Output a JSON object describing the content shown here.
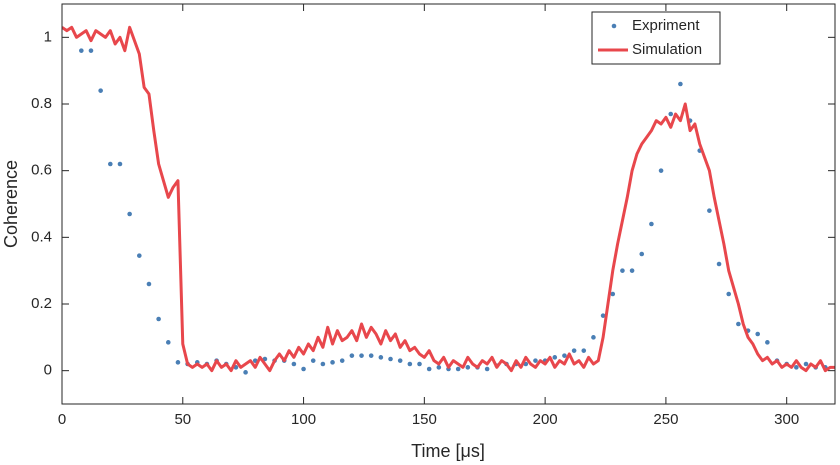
{
  "chart_data": {
    "type": "line",
    "xlabel": "Time [μs]",
    "ylabel": "Coherence",
    "xlim": [
      0,
      320
    ],
    "ylim": [
      -0.1,
      1.1
    ],
    "xticks": [
      0,
      50,
      100,
      150,
      200,
      250,
      300
    ],
    "yticks": [
      0,
      0.2,
      0.4,
      0.6,
      0.8,
      1
    ],
    "legend": "upper right",
    "series": [
      {
        "name": "Expriment",
        "color": "#4a7fb5",
        "mode": "markers",
        "x": [
          8,
          12,
          16,
          20,
          24,
          28,
          32,
          36,
          40,
          44,
          48,
          52,
          56,
          60,
          64,
          68,
          72,
          76,
          80,
          84,
          88,
          92,
          96,
          100,
          104,
          108,
          112,
          116,
          120,
          124,
          128,
          132,
          136,
          140,
          144,
          148,
          152,
          156,
          160,
          164,
          168,
          172,
          176,
          180,
          184,
          188,
          192,
          196,
          200,
          204,
          208,
          212,
          216,
          220,
          224,
          228,
          232,
          236,
          240,
          244,
          248,
          252,
          256,
          260,
          264,
          268,
          272,
          276,
          280,
          284,
          288,
          292,
          296,
          300,
          304,
          308,
          312,
          316
        ],
        "values": [
          0.96,
          0.96,
          0.84,
          0.62,
          0.62,
          0.47,
          0.345,
          0.26,
          0.155,
          0.085,
          0.025,
          0.02,
          0.025,
          0.02,
          0.03,
          0.02,
          0.01,
          -0.005,
          0.03,
          0.035,
          0.03,
          0.03,
          0.02,
          0.005,
          0.03,
          0.02,
          0.025,
          0.03,
          0.045,
          0.045,
          0.045,
          0.04,
          0.035,
          0.03,
          0.02,
          0.02,
          0.005,
          0.01,
          0.005,
          0.005,
          0.01,
          0.01,
          0.005,
          0.015,
          0.02,
          0.02,
          0.02,
          0.03,
          0.03,
          0.04,
          0.045,
          0.06,
          0.06,
          0.1,
          0.165,
          0.23,
          0.3,
          0.3,
          0.35,
          0.44,
          0.6,
          0.77,
          0.86,
          0.75,
          0.66,
          0.48,
          0.32,
          0.23,
          0.14,
          0.12,
          0.11,
          0.085,
          0.03,
          0.02,
          0.01,
          0.02,
          0.01,
          0.01
        ]
      },
      {
        "name": "Simulation",
        "color": "#e8474c",
        "mode": "line",
        "x": [
          0,
          2,
          4,
          6,
          8,
          10,
          12,
          14,
          16,
          18,
          20,
          22,
          24,
          26,
          28,
          30,
          32,
          34,
          36,
          38,
          40,
          42,
          44,
          46,
          48,
          50,
          52,
          54,
          56,
          58,
          60,
          62,
          64,
          66,
          68,
          70,
          72,
          74,
          76,
          78,
          80,
          82,
          84,
          86,
          88,
          90,
          92,
          94,
          96,
          98,
          100,
          102,
          104,
          106,
          108,
          110,
          112,
          114,
          116,
          118,
          120,
          122,
          124,
          126,
          128,
          130,
          132,
          134,
          136,
          138,
          140,
          142,
          144,
          146,
          148,
          150,
          152,
          154,
          156,
          158,
          160,
          162,
          164,
          166,
          168,
          170,
          172,
          174,
          176,
          178,
          180,
          182,
          184,
          186,
          188,
          190,
          192,
          194,
          196,
          198,
          200,
          202,
          204,
          206,
          208,
          210,
          212,
          214,
          216,
          218,
          220,
          222,
          224,
          226,
          228,
          230,
          232,
          234,
          236,
          238,
          240,
          242,
          244,
          246,
          248,
          250,
          252,
          254,
          256,
          258,
          260,
          262,
          264,
          266,
          268,
          270,
          272,
          274,
          276,
          278,
          280,
          282,
          284,
          286,
          288,
          290,
          292,
          294,
          296,
          298,
          300,
          302,
          304,
          306,
          308,
          310,
          312,
          314,
          316,
          318,
          320
        ],
        "values": [
          1.03,
          1.02,
          1.03,
          1.0,
          1.01,
          1.02,
          0.99,
          1.02,
          1.01,
          1.0,
          1.02,
          0.98,
          1.0,
          0.96,
          1.03,
          0.99,
          0.95,
          0.85,
          0.83,
          0.72,
          0.62,
          0.57,
          0.52,
          0.55,
          0.57,
          0.08,
          0.02,
          0.01,
          0.02,
          0.01,
          0.02,
          0.0,
          0.03,
          0.01,
          0.02,
          0.0,
          0.03,
          0.01,
          0.02,
          0.03,
          0.01,
          0.04,
          0.02,
          0.0,
          0.03,
          0.05,
          0.03,
          0.06,
          0.04,
          0.07,
          0.05,
          0.08,
          0.06,
          0.1,
          0.07,
          0.13,
          0.08,
          0.12,
          0.09,
          0.1,
          0.12,
          0.09,
          0.14,
          0.1,
          0.13,
          0.11,
          0.08,
          0.12,
          0.09,
          0.11,
          0.07,
          0.09,
          0.06,
          0.07,
          0.05,
          0.04,
          0.06,
          0.03,
          0.02,
          0.04,
          0.01,
          0.03,
          0.02,
          0.01,
          0.04,
          0.02,
          0.01,
          0.03,
          0.02,
          0.04,
          0.01,
          0.03,
          0.02,
          0.0,
          0.03,
          0.01,
          0.04,
          0.02,
          0.01,
          0.03,
          0.02,
          0.04,
          0.01,
          0.03,
          0.02,
          0.05,
          0.02,
          0.03,
          0.01,
          0.04,
          0.02,
          0.03,
          0.1,
          0.2,
          0.3,
          0.38,
          0.45,
          0.52,
          0.6,
          0.65,
          0.68,
          0.7,
          0.72,
          0.75,
          0.74,
          0.76,
          0.73,
          0.77,
          0.75,
          0.8,
          0.72,
          0.74,
          0.68,
          0.64,
          0.6,
          0.52,
          0.45,
          0.38,
          0.3,
          0.25,
          0.2,
          0.14,
          0.1,
          0.08,
          0.05,
          0.03,
          0.04,
          0.02,
          0.03,
          0.01,
          0.02,
          0.01,
          0.03,
          0.01,
          0.0,
          0.02,
          0.01,
          0.03,
          0.0,
          0.01,
          0.01
        ]
      }
    ]
  }
}
